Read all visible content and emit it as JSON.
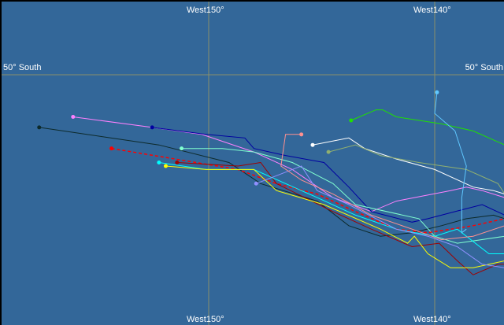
{
  "map": {
    "background_color": "#336799",
    "grid_color": "#8a8f6a",
    "graticule": {
      "meridians": [
        {
          "lon": -150,
          "label": "West150°"
        },
        {
          "lon": -140,
          "label": "West140°"
        }
      ],
      "parallels": [
        {
          "lat": -50,
          "label": "50° South"
        }
      ]
    },
    "tracks": [
      {
        "color": "#0d2a2a",
        "dashed": false,
        "points": [
          [
            -157.5,
            -51.5
          ],
          [
            -152.2,
            -52.0
          ],
          [
            -149.1,
            -52.5
          ],
          [
            -147.7,
            -53.1
          ],
          [
            -145.2,
            -53.6
          ],
          [
            -143.8,
            -54.3
          ],
          [
            -142.4,
            -54.6
          ],
          [
            -141.0,
            -54.5
          ],
          [
            -139.7,
            -54.3
          ],
          [
            -138.6,
            -54.1
          ],
          [
            -137.4,
            -54.0
          ],
          [
            -136.9,
            -54.1
          ]
        ]
      },
      {
        "color": "#ff80ff",
        "dashed": false,
        "points": [
          [
            -156.0,
            -51.2
          ],
          [
            -152.5,
            -51.5
          ],
          [
            -150.3,
            -51.7
          ],
          [
            -148.0,
            -52.2
          ],
          [
            -146.3,
            -52.7
          ],
          [
            -144.5,
            -53.5
          ],
          [
            -142.8,
            -53.9
          ],
          [
            -141.7,
            -53.6
          ],
          [
            -139.3,
            -53.3
          ],
          [
            -138.6,
            -53.2
          ],
          [
            -137.9,
            -53.3
          ],
          [
            -136.9,
            -53.5
          ]
        ]
      },
      {
        "color": "#0000a0",
        "dashed": false,
        "points": [
          [
            -152.5,
            -51.5
          ],
          [
            -150.1,
            -51.7
          ],
          [
            -148.4,
            -51.8
          ],
          [
            -148.0,
            -52.1
          ],
          [
            -146.6,
            -52.3
          ],
          [
            -144.9,
            -52.5
          ],
          [
            -143.8,
            -53.2
          ],
          [
            -142.8,
            -53.9
          ],
          [
            -141.0,
            -54.2
          ],
          [
            -140.3,
            -54.1
          ],
          [
            -139.1,
            -53.9
          ],
          [
            -137.9,
            -53.7
          ],
          [
            -136.9,
            -54.0
          ]
        ]
      },
      {
        "color": "#80ffd0",
        "dashed": false,
        "points": [
          [
            -151.2,
            -52.1
          ],
          [
            -149.4,
            -52.1
          ],
          [
            -148.0,
            -52.2
          ],
          [
            -146.3,
            -52.5
          ],
          [
            -144.5,
            -53.1
          ],
          [
            -143.5,
            -53.7
          ],
          [
            -140.7,
            -54.1
          ],
          [
            -140.0,
            -54.6
          ],
          [
            -139.0,
            -54.8
          ],
          [
            -136.9,
            -54.6
          ]
        ]
      },
      {
        "color": "#ff0000",
        "dashed": true,
        "points": [
          [
            -154.3,
            -52.1
          ],
          [
            -151.5,
            -52.4
          ],
          [
            -148.7,
            -52.7
          ],
          [
            -147.0,
            -53.1
          ],
          [
            -145.2,
            -53.4
          ],
          [
            -143.5,
            -53.9
          ],
          [
            -141.7,
            -54.4
          ],
          [
            -140.3,
            -54.5
          ],
          [
            -138.3,
            -54.3
          ],
          [
            -136.9,
            -54.1
          ]
        ]
      },
      {
        "color": "#a00000",
        "dashed": false,
        "points": [
          [
            -151.4,
            -52.5
          ],
          [
            -148.7,
            -52.6
          ],
          [
            -147.7,
            -52.5
          ],
          [
            -147.0,
            -53.1
          ],
          [
            -144.5,
            -53.9
          ],
          [
            -142.8,
            -54.4
          ],
          [
            -141.0,
            -54.9
          ],
          [
            -139.8,
            -54.8
          ],
          [
            -139.0,
            -55.3
          ],
          [
            -138.3,
            -55.7
          ],
          [
            -137.2,
            -55.4
          ],
          [
            -136.9,
            -55.4
          ]
        ]
      },
      {
        "color": "#00ffff",
        "dashed": false,
        "points": [
          [
            -152.2,
            -52.5
          ],
          [
            -150.1,
            -52.7
          ],
          [
            -148.0,
            -52.7
          ],
          [
            -145.2,
            -53.5
          ],
          [
            -143.5,
            -54.0
          ],
          [
            -141.7,
            -54.4
          ],
          [
            -140.0,
            -54.6
          ],
          [
            -139.0,
            -54.4
          ],
          [
            -137.6,
            -55.1
          ],
          [
            -136.9,
            -55.1
          ]
        ]
      },
      {
        "color": "#ffff00",
        "dashed": false,
        "points": [
          [
            -151.9,
            -52.6
          ],
          [
            -150.1,
            -52.7
          ],
          [
            -148.0,
            -52.7
          ],
          [
            -147.0,
            -53.3
          ],
          [
            -144.9,
            -53.7
          ],
          [
            -142.4,
            -54.4
          ],
          [
            -141.2,
            -54.8
          ],
          [
            -140.9,
            -54.6
          ],
          [
            -140.3,
            -55.1
          ],
          [
            -139.3,
            -55.5
          ],
          [
            -138.3,
            -55.5
          ],
          [
            -136.9,
            -55.3
          ]
        ]
      },
      {
        "color": "#9090ff",
        "dashed": false,
        "points": [
          [
            -147.9,
            -53.1
          ],
          [
            -145.9,
            -52.6
          ],
          [
            -145.2,
            -53.3
          ],
          [
            -143.8,
            -53.7
          ],
          [
            -141.7,
            -54.4
          ],
          [
            -140.3,
            -54.6
          ],
          [
            -139.0,
            -54.9
          ],
          [
            -137.9,
            -55.4
          ],
          [
            -136.9,
            -55.5
          ]
        ]
      },
      {
        "color": "#ff9090",
        "dashed": false,
        "points": [
          [
            -145.9,
            -51.7
          ],
          [
            -146.6,
            -51.7
          ],
          [
            -146.8,
            -52.6
          ],
          [
            -145.9,
            -53.0
          ],
          [
            -144.5,
            -53.4
          ],
          [
            -142.8,
            -54.0
          ],
          [
            -141.0,
            -54.4
          ],
          [
            -139.7,
            -54.7
          ],
          [
            -138.3,
            -54.6
          ],
          [
            -136.9,
            -54.3
          ]
        ]
      },
      {
        "color": "#ffffff",
        "dashed": false,
        "points": [
          [
            -145.4,
            -52.0
          ],
          [
            -143.8,
            -51.8
          ],
          [
            -143.1,
            -52.1
          ],
          [
            -141.7,
            -52.4
          ],
          [
            -140.0,
            -52.7
          ],
          [
            -138.3,
            -53.2
          ],
          [
            -137.4,
            -53.3
          ],
          [
            -136.9,
            -53.4
          ]
        ]
      },
      {
        "color": "#90b070",
        "dashed": false,
        "points": [
          [
            -144.7,
            -52.2
          ],
          [
            -143.5,
            -52.0
          ],
          [
            -142.4,
            -52.3
          ],
          [
            -140.7,
            -52.5
          ],
          [
            -138.6,
            -52.7
          ],
          [
            -137.2,
            -53.1
          ],
          [
            -136.9,
            -53.4
          ]
        ]
      },
      {
        "color": "#20e000",
        "dashed": false,
        "points": [
          [
            -143.7,
            -51.3
          ],
          [
            -142.6,
            -51.0
          ],
          [
            -142.3,
            -51.0
          ],
          [
            -141.7,
            -51.2
          ],
          [
            -139.7,
            -51.4
          ],
          [
            -138.3,
            -51.6
          ],
          [
            -136.9,
            -52.0
          ]
        ]
      },
      {
        "color": "#60c8ff",
        "dashed": false,
        "points": [
          [
            -139.9,
            -50.5
          ],
          [
            -140.0,
            -51.1
          ],
          [
            -139.1,
            -51.6
          ],
          [
            -138.6,
            -52.6
          ],
          [
            -138.8,
            -53.5
          ],
          [
            -138.8,
            -54.5
          ],
          [
            -138.6,
            -54.4
          ]
        ]
      }
    ]
  }
}
